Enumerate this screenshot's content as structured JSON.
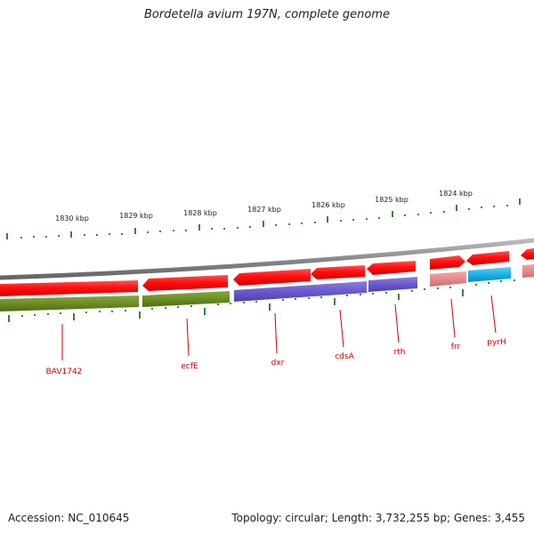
{
  "title": "Bordetella avium 197N, complete genome",
  "footer": {
    "accession": "Accession: NC_010645",
    "summary": "Topology: circular; Length: 3,732,255 bp; Genes: 3,455"
  },
  "scale": {
    "labels": [
      "1830 kbp",
      "1829 kbp",
      "1828 kbp",
      "1827 kbp",
      "1826 kbp",
      "1825 kbp",
      "1824 kbp"
    ],
    "tick_color": "#2e8b2e"
  },
  "genes": [
    {
      "name": "BAV1742"
    },
    {
      "name": "ecfE"
    },
    {
      "name": "dxr"
    },
    {
      "name": "cdsA"
    },
    {
      "name": "rth"
    },
    {
      "name": "frr"
    },
    {
      "name": "pyrH"
    }
  ],
  "colors": {
    "backbone": "#8a8a8a",
    "gene_red": "#ff1a1a",
    "olive": "#6b8e23",
    "purple": "#6a5acd",
    "pink": "#e88a8a",
    "cyan": "#1ab2e6",
    "label_red": "#cc0000"
  }
}
